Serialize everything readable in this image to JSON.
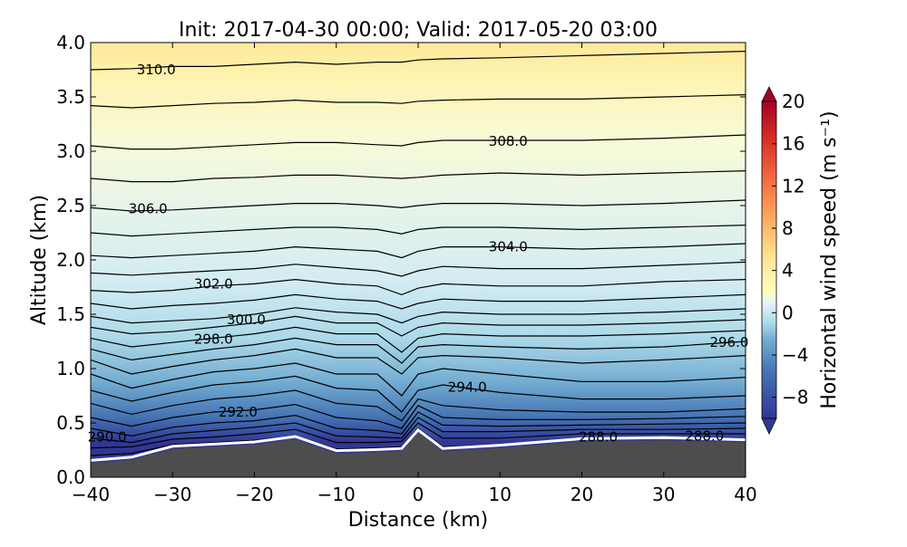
{
  "chart_data": {
    "type": "contour",
    "title": "Init: 2017-04-30 00:00; Valid: 2017-05-20 03:00",
    "xlabel": "Distance (km)",
    "ylabel": "Altitude (km)",
    "xlim": [
      -40,
      40
    ],
    "ylim": [
      0.0,
      4.0
    ],
    "xticks": [
      "−40",
      "−30",
      "−20",
      "−10",
      "0",
      "10",
      "20",
      "30",
      "40"
    ],
    "xtick_values": [
      -40,
      -30,
      -20,
      -10,
      0,
      10,
      20,
      30,
      40
    ],
    "yticks": [
      "0.0",
      "0.5",
      "1.0",
      "1.5",
      "2.0",
      "2.5",
      "3.0",
      "3.5",
      "4.0"
    ],
    "ytick_values": [
      0,
      0.5,
      1,
      1.5,
      2,
      2.5,
      3,
      3.5,
      4
    ],
    "colorbar": {
      "label": "Horizontal wind speed (m s⁻¹)",
      "range": [
        -10,
        20
      ],
      "ticks": [
        "−8",
        "−4",
        "0",
        "4",
        "8",
        "12",
        "16",
        "20"
      ],
      "tick_values": [
        -8,
        -4,
        0,
        4,
        8,
        12,
        16,
        20
      ],
      "colormap": "RdYlBu_r",
      "extend": "both"
    },
    "terrain": {
      "color": "#4d4d4d",
      "x": [
        -40,
        -35,
        -30,
        -25,
        -20,
        -15,
        -10,
        -5,
        -2,
        0,
        3,
        10,
        20,
        30,
        40
      ],
      "altitude": [
        0.13,
        0.16,
        0.26,
        0.28,
        0.3,
        0.35,
        0.22,
        0.23,
        0.24,
        0.41,
        0.24,
        0.27,
        0.33,
        0.34,
        0.32
      ]
    },
    "contours": {
      "x": [
        -40,
        -35,
        -30,
        -25,
        -20,
        -15,
        -10,
        -5,
        -2,
        0,
        3,
        10,
        20,
        30,
        40
      ],
      "levels": [
        {
          "theta": 288,
          "alt": [
            0.2,
            0.22,
            0.3,
            0.32,
            0.34,
            0.38,
            0.26,
            0.27,
            0.28,
            0.45,
            0.28,
            0.3,
            0.35,
            0.36,
            0.34
          ]
        },
        {
          "theta": 289,
          "alt": [
            0.27,
            0.28,
            0.35,
            0.37,
            0.4,
            0.44,
            0.32,
            0.32,
            0.33,
            0.5,
            0.36,
            0.36,
            0.4,
            0.4,
            0.4
          ]
        },
        {
          "theta": 290,
          "alt": [
            0.36,
            0.32,
            0.4,
            0.43,
            0.46,
            0.5,
            0.38,
            0.37,
            0.36,
            0.55,
            0.42,
            0.42,
            0.44,
            0.44,
            0.45
          ]
        },
        {
          "theta": 291,
          "alt": [
            0.45,
            0.38,
            0.46,
            0.5,
            0.52,
            0.57,
            0.45,
            0.43,
            0.4,
            0.6,
            0.48,
            0.47,
            0.48,
            0.49,
            0.5
          ]
        },
        {
          "theta": 292,
          "alt": [
            0.55,
            0.47,
            0.55,
            0.6,
            0.62,
            0.67,
            0.55,
            0.52,
            0.45,
            0.66,
            0.55,
            0.53,
            0.53,
            0.54,
            0.56
          ]
        },
        {
          "theta": 293,
          "alt": [
            0.68,
            0.58,
            0.66,
            0.72,
            0.75,
            0.8,
            0.68,
            0.65,
            0.52,
            0.72,
            0.66,
            0.62,
            0.6,
            0.6,
            0.63
          ]
        },
        {
          "theta": 294,
          "alt": [
            0.8,
            0.7,
            0.78,
            0.85,
            0.88,
            0.93,
            0.82,
            0.8,
            0.6,
            0.8,
            0.85,
            0.78,
            0.72,
            0.72,
            0.75
          ]
        },
        {
          "theta": 295,
          "alt": [
            0.95,
            0.82,
            0.9,
            0.97,
            1.0,
            1.05,
            0.95,
            0.95,
            0.75,
            0.95,
            1.0,
            0.95,
            0.88,
            0.88,
            0.92
          ]
        },
        {
          "theta": 296,
          "alt": [
            1.08,
            0.95,
            1.02,
            1.08,
            1.12,
            1.18,
            1.1,
            1.1,
            0.95,
            1.1,
            1.12,
            1.1,
            1.05,
            1.08,
            1.12
          ]
        },
        {
          "theta": 297,
          "alt": [
            1.18,
            1.08,
            1.13,
            1.18,
            1.22,
            1.28,
            1.22,
            1.22,
            1.05,
            1.2,
            1.22,
            1.2,
            1.18,
            1.2,
            1.25
          ]
        },
        {
          "theta": 298,
          "alt": [
            1.28,
            1.2,
            1.24,
            1.28,
            1.32,
            1.38,
            1.32,
            1.32,
            1.15,
            1.28,
            1.32,
            1.3,
            1.3,
            1.32,
            1.35
          ]
        },
        {
          "theta": 299,
          "alt": [
            1.38,
            1.32,
            1.34,
            1.38,
            1.42,
            1.48,
            1.42,
            1.42,
            1.3,
            1.38,
            1.42,
            1.4,
            1.4,
            1.42,
            1.45
          ]
        },
        {
          "theta": 300,
          "alt": [
            1.48,
            1.42,
            1.44,
            1.46,
            1.5,
            1.56,
            1.52,
            1.5,
            1.42,
            1.48,
            1.52,
            1.5,
            1.5,
            1.52,
            1.55
          ]
        },
        {
          "theta": 301,
          "alt": [
            1.6,
            1.55,
            1.58,
            1.6,
            1.63,
            1.68,
            1.64,
            1.62,
            1.55,
            1.6,
            1.64,
            1.62,
            1.62,
            1.65,
            1.68
          ]
        },
        {
          "theta": 302,
          "alt": [
            1.72,
            1.7,
            1.72,
            1.76,
            1.78,
            1.82,
            1.78,
            1.76,
            1.68,
            1.74,
            1.78,
            1.76,
            1.76,
            1.8,
            1.82
          ]
        },
        {
          "theta": 303,
          "alt": [
            1.88,
            1.86,
            1.88,
            1.9,
            1.92,
            1.96,
            1.93,
            1.9,
            1.85,
            1.9,
            1.94,
            1.92,
            1.92,
            1.95,
            1.98
          ]
        },
        {
          "theta": 304,
          "alt": [
            2.04,
            2.02,
            2.04,
            2.06,
            2.08,
            2.12,
            2.1,
            2.08,
            2.02,
            2.08,
            2.12,
            2.12,
            2.1,
            2.12,
            2.15
          ]
        },
        {
          "theta": 305,
          "alt": [
            2.25,
            2.22,
            2.24,
            2.26,
            2.28,
            2.3,
            2.3,
            2.28,
            2.24,
            2.28,
            2.3,
            2.3,
            2.28,
            2.3,
            2.32
          ]
        },
        {
          "theta": 306,
          "alt": [
            2.48,
            2.45,
            2.46,
            2.48,
            2.5,
            2.52,
            2.52,
            2.5,
            2.48,
            2.5,
            2.52,
            2.52,
            2.5,
            2.52,
            2.55
          ]
        },
        {
          "theta": 307,
          "alt": [
            2.75,
            2.72,
            2.72,
            2.75,
            2.76,
            2.78,
            2.78,
            2.76,
            2.75,
            2.76,
            2.78,
            2.8,
            2.78,
            2.8,
            2.82
          ]
        },
        {
          "theta": 308,
          "alt": [
            3.05,
            3.02,
            3.02,
            3.04,
            3.06,
            3.08,
            3.08,
            3.06,
            3.05,
            3.08,
            3.1,
            3.1,
            3.1,
            3.12,
            3.15
          ]
        },
        {
          "theta": 309,
          "alt": [
            3.42,
            3.4,
            3.42,
            3.44,
            3.45,
            3.47,
            3.45,
            3.45,
            3.44,
            3.46,
            3.47,
            3.48,
            3.48,
            3.5,
            3.52
          ]
        },
        {
          "theta": 310,
          "alt": [
            3.75,
            3.76,
            3.78,
            3.78,
            3.8,
            3.82,
            3.8,
            3.82,
            3.82,
            3.84,
            3.85,
            3.86,
            3.88,
            3.9,
            3.92
          ]
        }
      ],
      "labels": [
        {
          "text": "310.0",
          "x": -32,
          "alt": 3.75
        },
        {
          "text": "308.0",
          "x": 11,
          "alt": 3.09
        },
        {
          "text": "306.0",
          "x": -33,
          "alt": 2.47
        },
        {
          "text": "304.0",
          "x": 11,
          "alt": 2.12
        },
        {
          "text": "302.0",
          "x": -25,
          "alt": 1.78
        },
        {
          "text": "300.0",
          "x": -21,
          "alt": 1.45
        },
        {
          "text": "298.0",
          "x": -25,
          "alt": 1.27
        },
        {
          "text": "296.0",
          "x": 38,
          "alt": 1.24
        },
        {
          "text": "294.0",
          "x": 6,
          "alt": 0.83
        },
        {
          "text": "292.0",
          "x": -22,
          "alt": 0.6
        },
        {
          "text": "290.0",
          "x": -38,
          "alt": 0.37
        },
        {
          "text": "288.0",
          "x": 22,
          "alt": 0.37
        },
        {
          "text": "288.0",
          "x": 35,
          "alt": 0.38
        }
      ]
    }
  }
}
